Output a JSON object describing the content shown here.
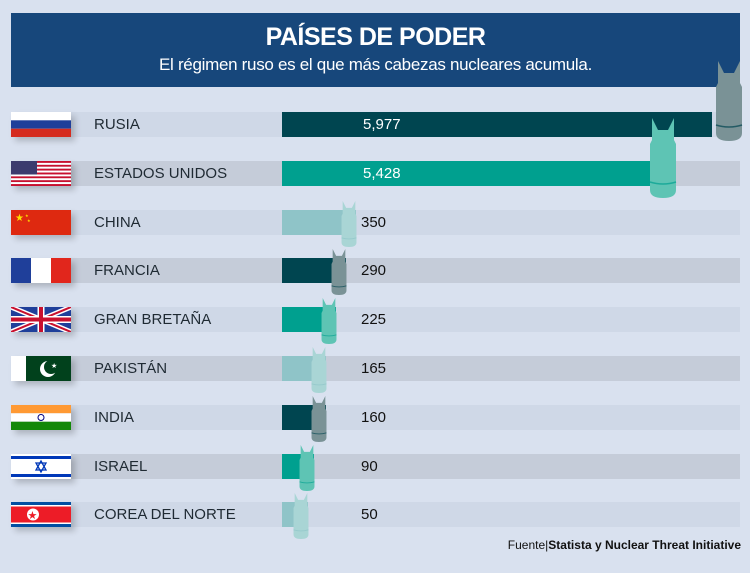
{
  "header": {
    "title": "PAÍSES DE PODER",
    "subtitle": "El régimen ruso es el que más cabezas nucleares acumula."
  },
  "chart_data": {
    "type": "bar",
    "title": "PAÍSES DE PODER",
    "subtitle": "El régimen ruso es el que más cabezas nucleares acumula.",
    "categories": [
      "RUSIA",
      "ESTADOS UNIDOS",
      "CHINA",
      "FRANCIA",
      "GRAN BRETAÑA",
      "PAKISTÁN",
      "INDIA",
      "ISRAEL",
      "COREA DEL NORTE"
    ],
    "values": [
      5977,
      5428,
      350,
      290,
      225,
      165,
      160,
      90,
      50
    ],
    "labels": [
      "5,977",
      "5,428",
      "350",
      "290",
      "225",
      "165",
      "160",
      "90",
      "50"
    ],
    "flags": [
      "russia",
      "usa",
      "china",
      "france",
      "uk",
      "pakistan",
      "india",
      "israel",
      "north-korea"
    ],
    "bar_colors": [
      "#004550",
      "#00a08f",
      "#8fc4c8",
      "#004550",
      "#00a08f",
      "#8fc4c8",
      "#004550",
      "#00a08f",
      "#8fc4c8"
    ],
    "bomb_colors": [
      "#7a9296",
      "#5ec4b4",
      "#a9d5d5",
      "#7a9296",
      "#5ec4b4",
      "#a9d5d5",
      "#7a9296",
      "#5ec4b4",
      "#a9d5d5"
    ]
  },
  "source": {
    "prefix": "Fuente|",
    "text": "Statista y Nuclear Threat Initiative"
  }
}
